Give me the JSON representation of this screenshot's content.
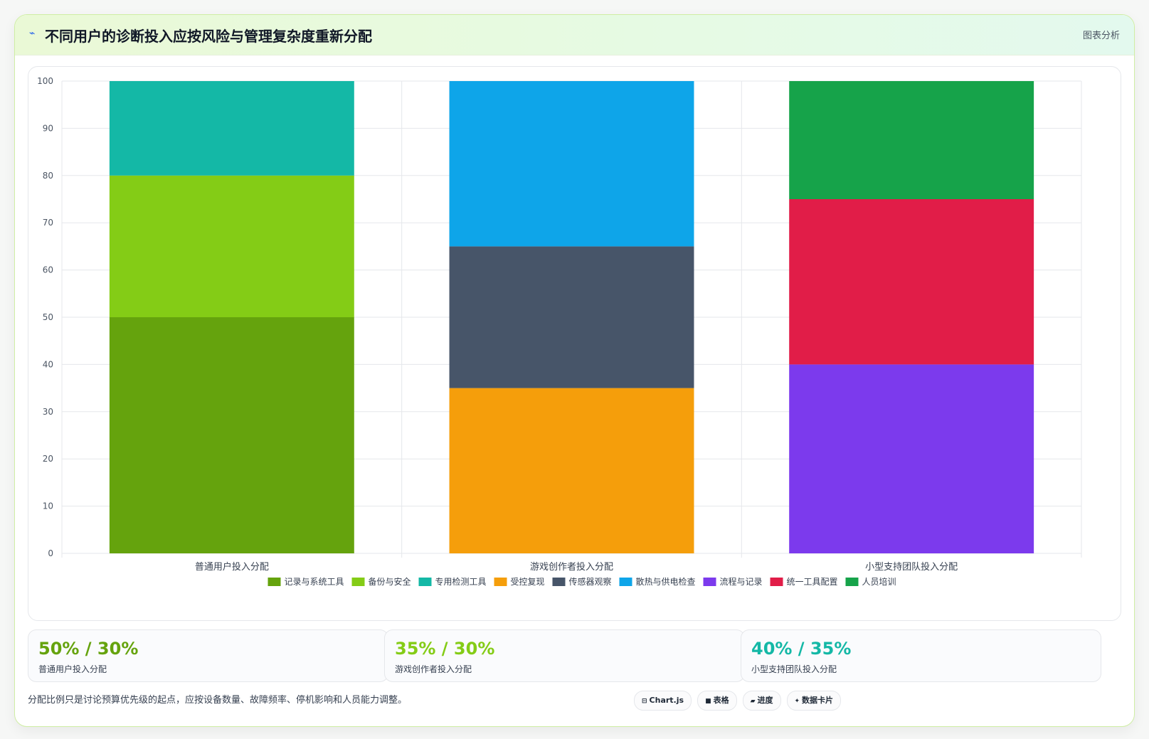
{
  "header": {
    "icon": "chart-line-icon",
    "title": "不同用户的诊断投入应按风险与管理复杂度重新分配",
    "tag": "图表分析"
  },
  "chart_data": {
    "type": "bar",
    "stacked": true,
    "title": "",
    "xlabel": "",
    "ylabel": "",
    "ylim": [
      0,
      100
    ],
    "yticks": [
      0,
      10,
      20,
      30,
      40,
      50,
      60,
      70,
      80,
      90,
      100
    ],
    "categories": [
      "普通用户投入分配",
      "游戏创作者投入分配",
      "小型支持团队投入分配"
    ],
    "grid": true,
    "legend_position": "bottom",
    "series": [
      {
        "name": "记录与系统工具",
        "color": "#65a30d",
        "values": [
          50,
          0,
          0
        ]
      },
      {
        "name": "备份与安全",
        "color": "#84cc16",
        "values": [
          30,
          0,
          0
        ]
      },
      {
        "name": "专用检测工具",
        "color": "#14b8a6",
        "values": [
          20,
          0,
          0
        ]
      },
      {
        "name": "受控复现",
        "color": "#f59e0b",
        "values": [
          0,
          35,
          0
        ]
      },
      {
        "name": "传感器观察",
        "color": "#475569",
        "values": [
          0,
          30,
          0
        ]
      },
      {
        "name": "散热与供电检查",
        "color": "#0ea5e9",
        "values": [
          0,
          35,
          0
        ]
      },
      {
        "name": "流程与记录",
        "color": "#7c3aed",
        "values": [
          0,
          0,
          40
        ]
      },
      {
        "name": "统一工具配置",
        "color": "#e11d48",
        "values": [
          0,
          0,
          35
        ]
      },
      {
        "name": "人员培训",
        "color": "#16a34a",
        "values": [
          0,
          0,
          25
        ]
      }
    ]
  },
  "stats": [
    {
      "value": "50% / 30%",
      "label": "普通用户投入分配",
      "color": "#65a30d"
    },
    {
      "value": "35% / 30%",
      "label": "游戏创作者投入分配",
      "color": "#84cc16"
    },
    {
      "value": "40% / 35%",
      "label": "小型支持团队投入分配",
      "color": "#14b8a6"
    }
  ],
  "footer": {
    "note": "分配比例只是讨论预算优先级的起点，应按设备数量、故障频率、停机影响和人员能力调整。",
    "pills": [
      {
        "icon": "⊟",
        "icon_name": "chartjs-icon",
        "label": "Chart.js"
      },
      {
        "icon": "■",
        "icon_name": "table-icon",
        "label": "表格"
      },
      {
        "icon": "▰",
        "icon_name": "progress-icon",
        "label": "进度"
      },
      {
        "icon": "✦",
        "icon_name": "data-card-icon",
        "label": "数据卡片"
      }
    ]
  }
}
